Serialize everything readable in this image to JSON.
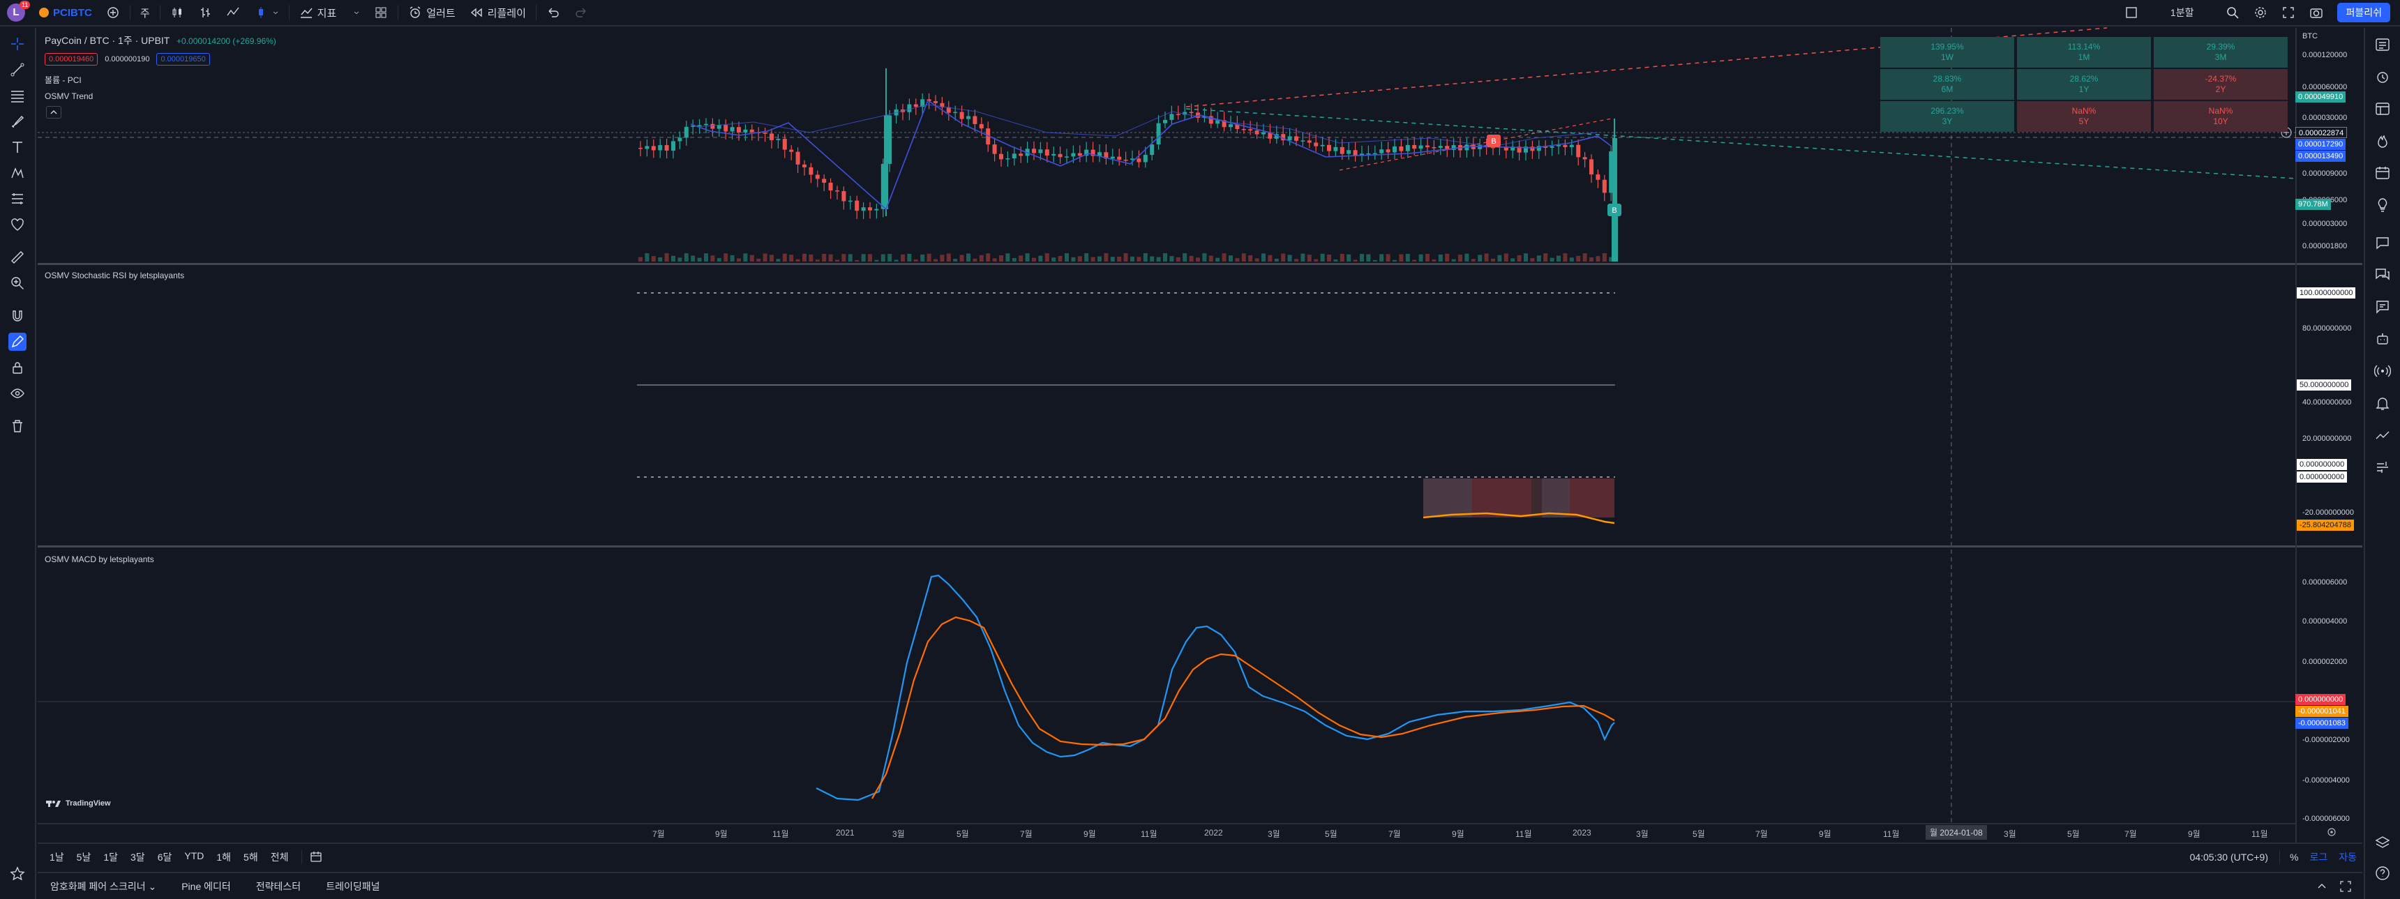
{
  "topbar": {
    "avatar_letter": "L",
    "avatar_badge": "11",
    "symbol": "PCIBTC",
    "interval": "주",
    "indicators_label": "지표",
    "alert_label": "얼러트",
    "replay_label": "리플레이",
    "layout_label": "1분할",
    "layout_sub": "",
    "publish_label": "퍼블리쉬"
  },
  "legend": {
    "title": "PayCoin / BTC · 1주 · UPBIT",
    "change": "+0.000014200 (+269.96%)",
    "sell": "0.000019460",
    "spread": "0.000000190",
    "buy": "0.000019650",
    "volume_label": "볼륨 - PCI",
    "trend_label": "OSMV Trend",
    "stoch_label": "OSMV Stochastic RSI by letsplayants",
    "macd_label": "OSMV MACD by letsplayants"
  },
  "perf_table": [
    {
      "value": "139.95%",
      "period": "1W",
      "tone": "pos"
    },
    {
      "value": "113.14%",
      "period": "1M",
      "tone": "pos"
    },
    {
      "value": "29.39%",
      "period": "3M",
      "tone": "pos"
    },
    {
      "value": "28.83%",
      "period": "6M",
      "tone": "pos"
    },
    {
      "value": "28.62%",
      "period": "1Y",
      "tone": "pos"
    },
    {
      "value": "-24.37%",
      "period": "2Y",
      "tone": "neg"
    },
    {
      "value": "296.23%",
      "period": "3Y",
      "tone": "pos"
    },
    {
      "value": "NaN%",
      "period": "5Y",
      "tone": "neg"
    },
    {
      "value": "NaN%",
      "period": "10Y",
      "tone": "neg"
    }
  ],
  "price_axis": {
    "currency": "BTC",
    "main_ticks": [
      "0.000120000",
      "0.000060000",
      "0.000030000",
      "0.000009000",
      "0.000006000",
      "0.000003000",
      "0.000001800"
    ],
    "tags": [
      {
        "text": "0.000049910",
        "color": "#26a69a"
      },
      {
        "text": "0.000022874",
        "color": "#131722"
      },
      {
        "text": "0.000017290",
        "color": "#2962ff"
      },
      {
        "text": "0.000013490",
        "color": "#2962ff"
      },
      {
        "text": "970.78M",
        "color": "#26a69a"
      }
    ],
    "stoch_ticks": [
      "80.000000000",
      "40.000000000",
      "20.000000000",
      "-20.000000000"
    ],
    "stoch_tags": [
      {
        "text": "100.000000000"
      },
      {
        "text": "50.000000000"
      },
      {
        "text": "0.000000000"
      },
      {
        "text": "0.000000000"
      },
      {
        "text": "-25.804204788"
      }
    ],
    "macd_ticks": [
      "0.000006000",
      "0.000004000",
      "0.000002000",
      "-0.000002000",
      "-0.000004000",
      "-0.000006000"
    ],
    "macd_tags": [
      {
        "text": "0.000000000",
        "color": "#f23645"
      },
      {
        "text": "-0.000001041",
        "color": "#ff9800"
      },
      {
        "text": "-0.000001083",
        "color": "#2962ff"
      }
    ]
  },
  "time_axis": [
    "7월",
    "9월",
    "11월",
    "2021",
    "3월",
    "5월",
    "7월",
    "9월",
    "11월",
    "2022",
    "3월",
    "5월",
    "7월",
    "9월",
    "11월",
    "2023",
    "3월",
    "5월",
    "7월",
    "9월",
    "11월",
    "3월",
    "5월",
    "7월",
    "9월",
    "11월"
  ],
  "crosshair_date": "월 2024-01-08",
  "bottom": {
    "ranges": [
      "1날",
      "5날",
      "1달",
      "3달",
      "6달",
      "YTD",
      "1해",
      "5해",
      "전체"
    ],
    "clock": "04:05:30 (UTC+9)",
    "pct": "%",
    "log": "로그",
    "auto": "자동"
  },
  "panels": [
    "암호화폐 페어 스크리너",
    "Pine 에디터",
    "전략테스터",
    "트레이딩패널"
  ],
  "watermark": "TradingView",
  "markers": {
    "sell": "B",
    "buy": "B"
  },
  "colors": {
    "up": "#26a69a",
    "down": "#ef5350",
    "accent": "#2962ff",
    "macd": "#2196f3",
    "signal": "#ff6d00"
  }
}
